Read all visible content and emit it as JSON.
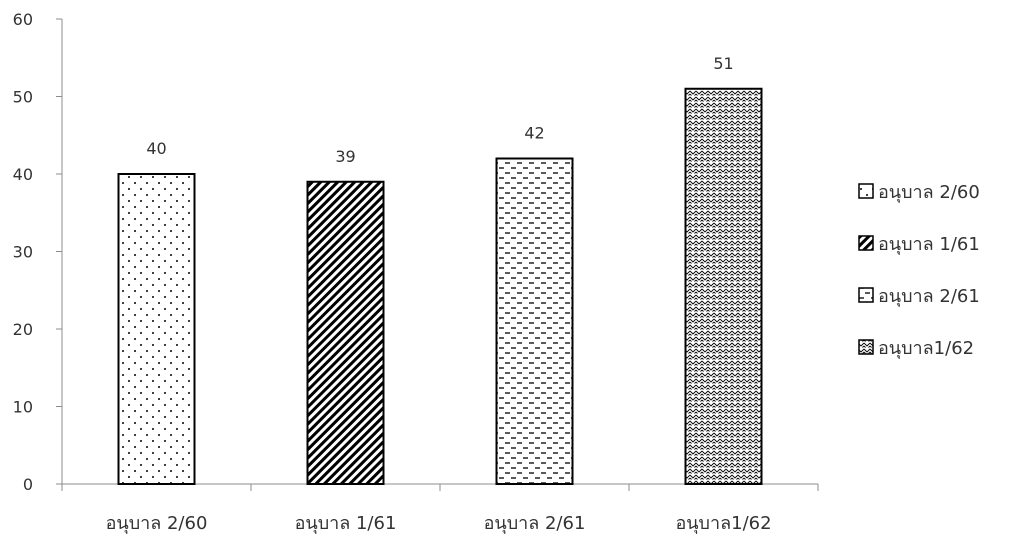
{
  "chart_data": {
    "type": "bar",
    "categories": [
      "อนุบาล 2/60",
      "อนุบาล 1/61",
      "อนุบาล 2/61",
      "อนุบาล1/62"
    ],
    "values": [
      40,
      39,
      42,
      51
    ],
    "data_labels": [
      "40",
      "39",
      "42",
      "51"
    ],
    "patterns": [
      "dots",
      "diagonal-stripes",
      "dashes",
      "zigzag"
    ],
    "ylim": [
      0,
      60
    ],
    "yticks": [
      0,
      10,
      20,
      30,
      40,
      50,
      60
    ],
    "ytick_labels": [
      "0",
      "10",
      "20",
      "30",
      "40",
      "50",
      "60"
    ],
    "title": "",
    "xlabel": "",
    "ylabel": "",
    "grid": false,
    "legend": {
      "position": "right",
      "entries": [
        "อนุบาล 2/60",
        "อนุบาล 1/61",
        "อนุบาล 2/61",
        "อนุบาล1/62"
      ]
    },
    "colors": {
      "stroke": "#000000",
      "axis": "#8c8c8c",
      "text": "#333333",
      "background": "#ffffff"
    }
  }
}
